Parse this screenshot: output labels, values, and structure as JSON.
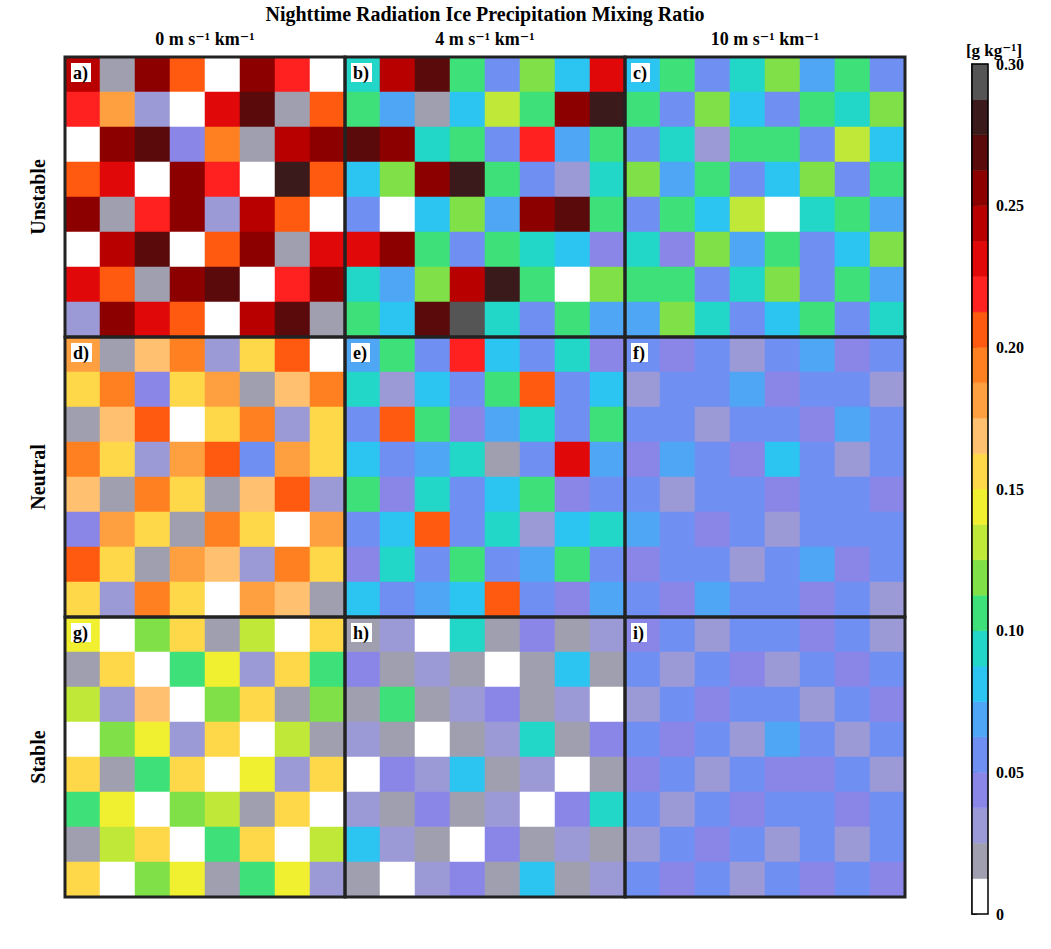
{
  "chart_data": {
    "type": "heatmap",
    "title": "Nighttime Radiation Ice Precipitation Mixing Ratio",
    "columns": [
      "0 m s⁻¹ km⁻¹",
      "4 m s⁻¹ km⁻¹",
      "10 m s⁻¹ km⁻¹"
    ],
    "rows": [
      "Unstable",
      "Neutral",
      "Stable"
    ],
    "colorbar": {
      "label": "[g kg⁻¹]",
      "range": [
        0,
        0.3
      ],
      "ticks": [
        0,
        0.05,
        {
          "value": 0.1,
          "label": "0.10"
        },
        0.15,
        {
          "value": 0.2,
          "label": "0.20"
        },
        0.25,
        {
          "value": 0.3,
          "label": "0.30"
        }
      ],
      "levels": [
        0,
        0.0125,
        0.025,
        0.0375,
        0.05,
        0.0625,
        0.075,
        0.0875,
        0.1,
        0.1125,
        0.125,
        0.1375,
        0.15,
        0.1625,
        0.175,
        0.1875,
        0.2,
        0.2125,
        0.225,
        0.2375,
        0.25,
        0.2625,
        0.275,
        0.2875,
        0.3
      ],
      "colors": [
        "#ffffff",
        "#a09fb0",
        "#9c9ad6",
        "#8a86e8",
        "#6f8ff2",
        "#4fa6f5",
        "#2cc4f0",
        "#22d6c8",
        "#3ee07a",
        "#7fe048",
        "#c0e838",
        "#f0f030",
        "#ffd84a",
        "#ffc070",
        "#ffa040",
        "#ff8020",
        "#ff5a10",
        "#ff2020",
        "#e00808",
        "#b80000",
        "#8c0000",
        "#5a0a0a",
        "#3a1a1a",
        "#555555"
      ]
    },
    "panels": [
      {
        "label": "a)",
        "row": 0,
        "column": 0,
        "values": [
          [
            0.24,
            0.02,
            0.26,
            0.21,
            0.01,
            0.25,
            0.22,
            0.0
          ],
          [
            0.22,
            0.18,
            0.03,
            0.0,
            0.23,
            0.27,
            0.02,
            0.2
          ],
          [
            0.01,
            0.25,
            0.27,
            0.04,
            0.19,
            0.02,
            0.24,
            0.26
          ],
          [
            0.2,
            0.23,
            0.0,
            0.26,
            0.22,
            0.01,
            0.28,
            0.21
          ],
          [
            0.26,
            0.02,
            0.22,
            0.25,
            0.03,
            0.24,
            0.2,
            0.0
          ],
          [
            0.0,
            0.24,
            0.27,
            0.01,
            0.21,
            0.26,
            0.02,
            0.23
          ],
          [
            0.23,
            0.21,
            0.02,
            0.25,
            0.27,
            0.0,
            0.22,
            0.25
          ],
          [
            0.03,
            0.26,
            0.23,
            0.2,
            0.01,
            0.24,
            0.27,
            0.02
          ]
        ]
      },
      {
        "label": "b)",
        "row": 0,
        "column": 1,
        "values": [
          [
            0.09,
            0.24,
            0.27,
            0.1,
            0.06,
            0.12,
            0.08,
            0.23
          ],
          [
            0.11,
            0.07,
            0.02,
            0.08,
            0.13,
            0.1,
            0.26,
            0.28
          ],
          [
            0.27,
            0.25,
            0.09,
            0.11,
            0.05,
            0.22,
            0.07,
            0.1
          ],
          [
            0.08,
            0.12,
            0.26,
            0.28,
            0.1,
            0.06,
            0.03,
            0.09
          ],
          [
            0.05,
            0.0,
            0.08,
            0.12,
            0.07,
            0.25,
            0.27,
            0.11
          ],
          [
            0.23,
            0.26,
            0.1,
            0.06,
            0.11,
            0.09,
            0.08,
            0.04
          ],
          [
            0.09,
            0.07,
            0.12,
            0.24,
            0.28,
            0.1,
            0.0,
            0.12
          ],
          [
            0.11,
            0.08,
            0.27,
            0.29,
            0.09,
            0.05,
            0.1,
            0.07
          ]
        ]
      },
      {
        "label": "c)",
        "row": 0,
        "column": 2,
        "values": [
          [
            0.08,
            0.11,
            0.06,
            0.09,
            0.12,
            0.07,
            0.1,
            0.05
          ],
          [
            0.1,
            0.06,
            0.12,
            0.08,
            0.05,
            0.11,
            0.09,
            0.12
          ],
          [
            0.05,
            0.09,
            0.03,
            0.11,
            0.1,
            0.06,
            0.13,
            0.08
          ],
          [
            0.12,
            0.07,
            0.1,
            0.05,
            0.08,
            0.12,
            0.06,
            0.1
          ],
          [
            0.06,
            0.11,
            0.08,
            0.13,
            0.0,
            0.09,
            0.11,
            0.07
          ],
          [
            0.09,
            0.04,
            0.12,
            0.07,
            0.1,
            0.06,
            0.08,
            0.12
          ],
          [
            0.11,
            0.1,
            0.06,
            0.09,
            0.12,
            0.05,
            0.1,
            0.07
          ],
          [
            0.07,
            0.12,
            0.09,
            0.05,
            0.08,
            0.11,
            0.06,
            0.09
          ]
        ]
      },
      {
        "label": "d)",
        "row": 1,
        "column": 0,
        "values": [
          [
            0.18,
            0.02,
            0.17,
            0.19,
            0.03,
            0.16,
            0.2,
            0.01
          ],
          [
            0.15,
            0.19,
            0.04,
            0.16,
            0.18,
            0.02,
            0.17,
            0.19
          ],
          [
            0.02,
            0.17,
            0.2,
            0.01,
            0.15,
            0.19,
            0.03,
            0.16
          ],
          [
            0.19,
            0.16,
            0.03,
            0.18,
            0.2,
            0.05,
            0.18,
            0.15
          ],
          [
            0.17,
            0.02,
            0.19,
            0.16,
            0.02,
            0.17,
            0.2,
            0.03
          ],
          [
            0.04,
            0.18,
            0.15,
            0.02,
            0.19,
            0.16,
            0.01,
            0.18
          ],
          [
            0.2,
            0.16,
            0.02,
            0.18,
            0.17,
            0.03,
            0.19,
            0.16
          ],
          [
            0.16,
            0.03,
            0.19,
            0.15,
            0.01,
            0.18,
            0.17,
            0.02
          ]
        ]
      },
      {
        "label": "e)",
        "row": 1,
        "column": 1,
        "values": [
          [
            0.07,
            0.1,
            0.05,
            0.22,
            0.08,
            0.06,
            0.09,
            0.04
          ],
          [
            0.09,
            0.03,
            0.08,
            0.06,
            0.1,
            0.21,
            0.05,
            0.08
          ],
          [
            0.05,
            0.2,
            0.1,
            0.04,
            0.07,
            0.09,
            0.06,
            0.1
          ],
          [
            0.08,
            0.06,
            0.07,
            0.09,
            0.02,
            0.05,
            0.23,
            0.07
          ],
          [
            0.1,
            0.04,
            0.09,
            0.06,
            0.08,
            0.1,
            0.04,
            0.06
          ],
          [
            0.06,
            0.08,
            0.21,
            0.05,
            0.09,
            0.03,
            0.08,
            0.09
          ],
          [
            0.04,
            0.09,
            0.06,
            0.1,
            0.05,
            0.07,
            0.1,
            0.05
          ],
          [
            0.08,
            0.05,
            0.07,
            0.08,
            0.2,
            0.06,
            0.04,
            0.07
          ]
        ]
      },
      {
        "label": "f)",
        "row": 1,
        "column": 2,
        "values": [
          [
            0.05,
            0.04,
            0.06,
            0.03,
            0.05,
            0.07,
            0.04,
            0.06
          ],
          [
            0.03,
            0.06,
            0.05,
            0.07,
            0.04,
            0.05,
            0.06,
            0.03
          ],
          [
            0.06,
            0.05,
            0.03,
            0.05,
            0.06,
            0.04,
            0.07,
            0.05
          ],
          [
            0.04,
            0.07,
            0.05,
            0.04,
            0.08,
            0.05,
            0.03,
            0.06
          ],
          [
            0.05,
            0.03,
            0.06,
            0.05,
            0.04,
            0.06,
            0.05,
            0.04
          ],
          [
            0.07,
            0.05,
            0.04,
            0.06,
            0.03,
            0.05,
            0.06,
            0.05
          ],
          [
            0.04,
            0.06,
            0.05,
            0.03,
            0.05,
            0.07,
            0.04,
            0.06
          ],
          [
            0.06,
            0.04,
            0.07,
            0.05,
            0.06,
            0.04,
            0.05,
            0.03
          ]
        ]
      },
      {
        "label": "g)",
        "row": 2,
        "column": 0,
        "values": [
          [
            0.14,
            0.01,
            0.12,
            0.16,
            0.02,
            0.13,
            0.0,
            0.15
          ],
          [
            0.02,
            0.15,
            0.0,
            0.11,
            0.14,
            0.03,
            0.16,
            0.1
          ],
          [
            0.13,
            0.03,
            0.17,
            0.01,
            0.12,
            0.15,
            0.02,
            0.12
          ],
          [
            0.0,
            0.12,
            0.14,
            0.03,
            0.16,
            0.0,
            0.13,
            0.02
          ],
          [
            0.16,
            0.02,
            0.1,
            0.15,
            0.01,
            0.14,
            0.03,
            0.15
          ],
          [
            0.11,
            0.14,
            0.01,
            0.12,
            0.13,
            0.02,
            0.15,
            0.0
          ],
          [
            0.02,
            0.13,
            0.16,
            0.0,
            0.11,
            0.16,
            0.01,
            0.13
          ],
          [
            0.15,
            0.0,
            0.12,
            0.14,
            0.02,
            0.1,
            0.14,
            0.03
          ]
        ]
      },
      {
        "label": "h)",
        "row": 2,
        "column": 1,
        "values": [
          [
            0.02,
            0.03,
            0.01,
            0.09,
            0.02,
            0.04,
            0.02,
            0.03
          ],
          [
            0.04,
            0.02,
            0.03,
            0.02,
            0.0,
            0.02,
            0.08,
            0.02
          ],
          [
            0.02,
            0.1,
            0.02,
            0.03,
            0.04,
            0.02,
            0.03,
            0.01
          ],
          [
            0.03,
            0.02,
            0.0,
            0.02,
            0.03,
            0.09,
            0.02,
            0.04
          ],
          [
            0.01,
            0.04,
            0.03,
            0.08,
            0.02,
            0.03,
            0.0,
            0.02
          ],
          [
            0.03,
            0.02,
            0.04,
            0.02,
            0.03,
            0.01,
            0.04,
            0.09
          ],
          [
            0.08,
            0.03,
            0.02,
            0.0,
            0.04,
            0.02,
            0.03,
            0.02
          ],
          [
            0.02,
            0.01,
            0.03,
            0.04,
            0.02,
            0.08,
            0.02,
            0.03
          ]
        ]
      },
      {
        "label": "i)",
        "row": 2,
        "column": 2,
        "values": [
          [
            0.04,
            0.05,
            0.03,
            0.05,
            0.06,
            0.04,
            0.05,
            0.03
          ],
          [
            0.05,
            0.03,
            0.06,
            0.04,
            0.03,
            0.05,
            0.04,
            0.06
          ],
          [
            0.03,
            0.06,
            0.04,
            0.05,
            0.05,
            0.03,
            0.06,
            0.04
          ],
          [
            0.06,
            0.04,
            0.05,
            0.03,
            0.07,
            0.05,
            0.03,
            0.05
          ],
          [
            0.04,
            0.05,
            0.03,
            0.06,
            0.04,
            0.04,
            0.05,
            0.03
          ],
          [
            0.05,
            0.03,
            0.05,
            0.04,
            0.05,
            0.06,
            0.04,
            0.05
          ],
          [
            0.03,
            0.06,
            0.04,
            0.05,
            0.03,
            0.05,
            0.03,
            0.06
          ],
          [
            0.05,
            0.04,
            0.06,
            0.03,
            0.05,
            0.04,
            0.06,
            0.04
          ]
        ]
      }
    ]
  }
}
